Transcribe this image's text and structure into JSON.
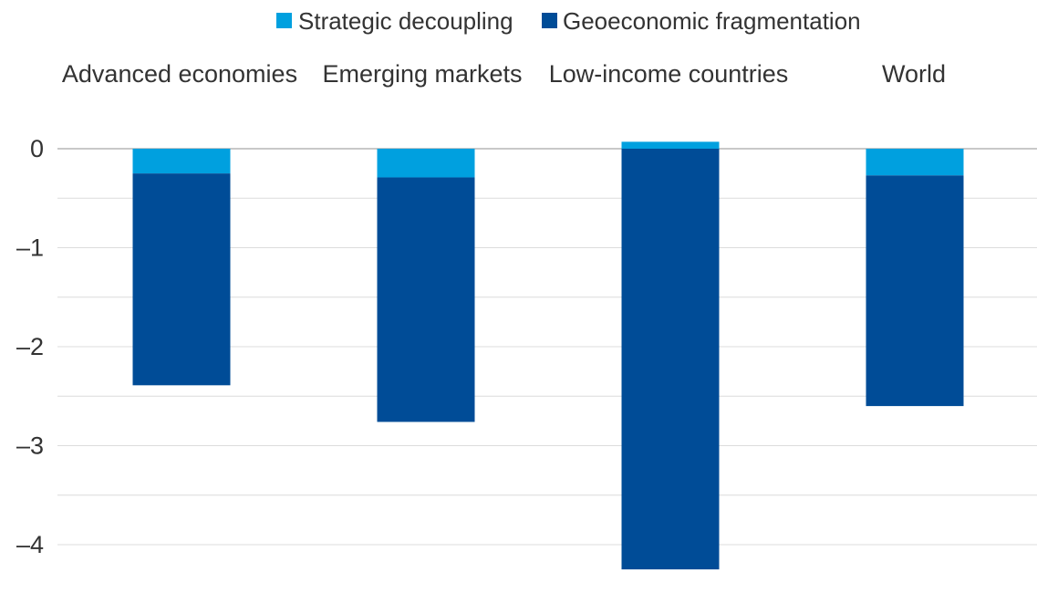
{
  "colors": {
    "strategic": "#00a0df",
    "geoeconomic": "#004c97",
    "text": "#333333",
    "grid": "#dcdcdc"
  },
  "chart_data": {
    "type": "bar",
    "stacked": true,
    "title": "",
    "xlabel": "",
    "ylabel": "",
    "categories": [
      "Advanced economies",
      "Emerging markets",
      "Low-income countries",
      "World"
    ],
    "series": [
      {
        "name": "Strategic decoupling",
        "color_key": "strategic",
        "values": [
          -0.25,
          -0.29,
          0.07,
          -0.27
        ]
      },
      {
        "name": "Geoeconomic fragmentation",
        "color_key": "geoeconomic",
        "values": [
          -2.14,
          -2.47,
          -4.25,
          -2.33
        ]
      }
    ],
    "yticks": [
      0,
      -1,
      -2,
      -3,
      -4
    ],
    "ytick_labels": [
      "0",
      "–1",
      "–2",
      "–3",
      "–4"
    ],
    "ylim": [
      -4.5,
      0.4
    ],
    "grid": true,
    "minor_grid_step": 0.5,
    "legend_position": "top",
    "category_labels_position": "top"
  }
}
